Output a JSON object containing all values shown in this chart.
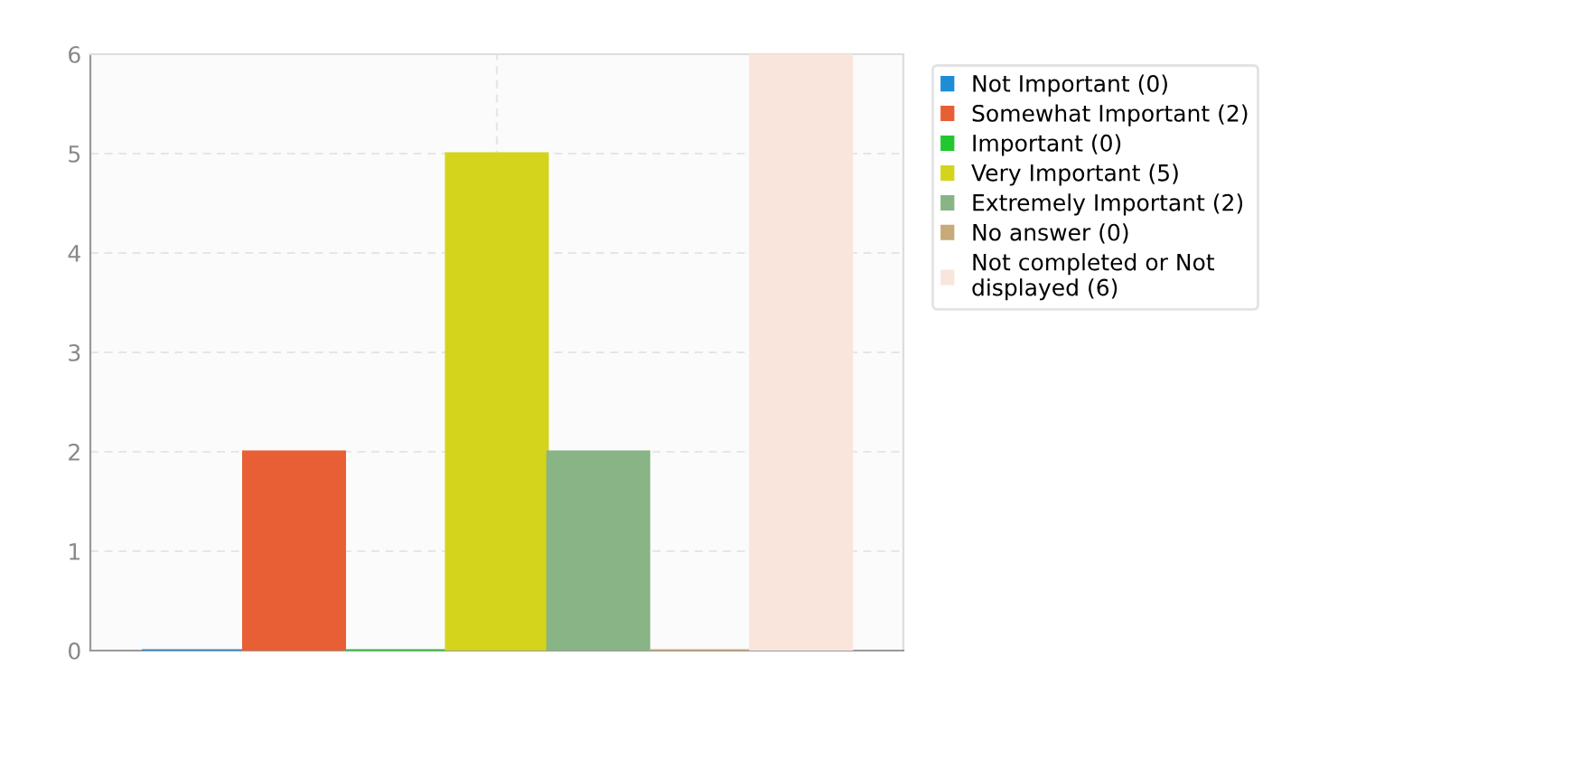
{
  "chart_data": {
    "type": "bar",
    "categories": [
      null
    ],
    "series": [
      {
        "name": "Not Important (0)",
        "color": "#1f8dd6",
        "values": [
          0
        ]
      },
      {
        "name": "Somewhat Important (2)",
        "color": "#e95f35",
        "values": [
          2
        ]
      },
      {
        "name": "Important (0)",
        "color": "#22c72f",
        "values": [
          0
        ]
      },
      {
        "name": "Very Important (5)",
        "color": "#d4d41c",
        "values": [
          5
        ]
      },
      {
        "name": "Extremely Important (2)",
        "color": "#88b486",
        "values": [
          2
        ]
      },
      {
        "name": "No answer (0)",
        "color": "#c7a97a",
        "values": [
          0
        ]
      },
      {
        "name": "Not completed or Not\ndisplayed (6)",
        "color": "#fae5dd",
        "values": [
          6
        ]
      }
    ],
    "ylim": [
      0,
      6
    ],
    "yticks": [
      0,
      1,
      2,
      3,
      4,
      5,
      6
    ],
    "grid": true,
    "legend": "top right"
  }
}
